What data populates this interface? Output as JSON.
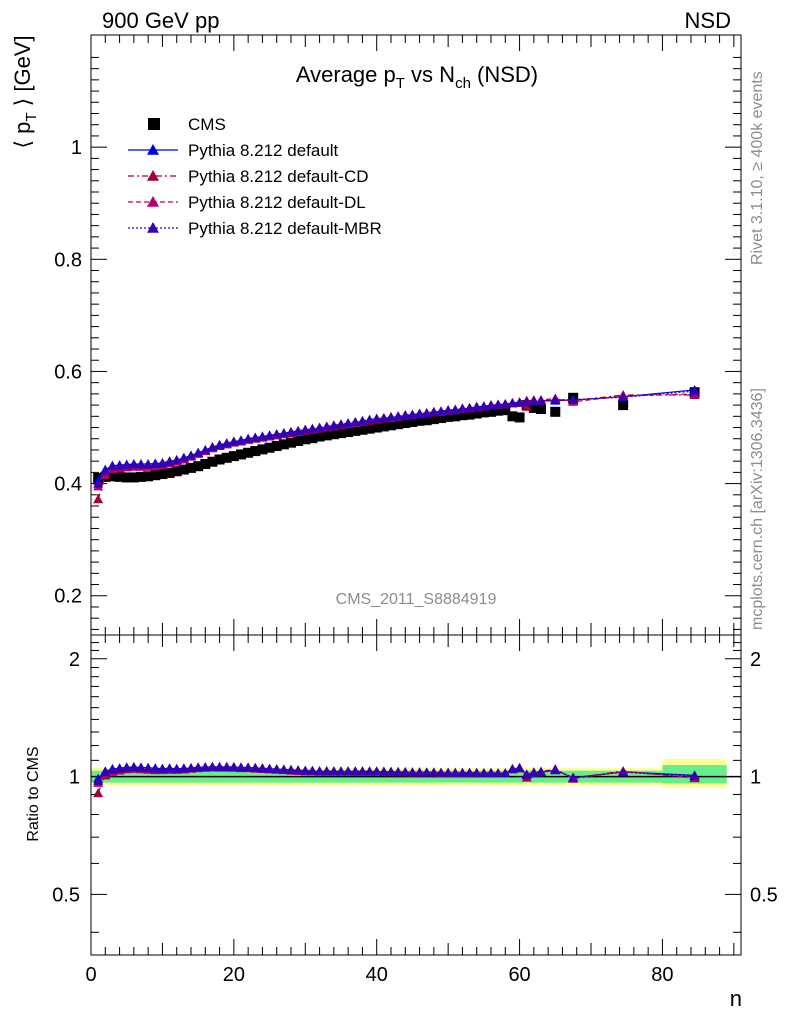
{
  "header": {
    "left": "900 GeV pp",
    "right": "NSD"
  },
  "side_labels": {
    "rivet": "Rivet 3.1.10, ≥ 400k events",
    "mcplots": "mcplots.cern.ch [arXiv:1306.3436]"
  },
  "analysis_id": "CMS_2011_S8884919",
  "colors": {
    "cms": "#000000",
    "default": "#0000ee",
    "cd": "#a50034",
    "dl": "#b5006e",
    "mbr": "#3200b5",
    "band_outer": "#ffff99",
    "band_inner": "#66ee88"
  },
  "chart_data": [
    {
      "type": "scatter",
      "title": "Average p_T vs N_ch (NSD)",
      "ylabel": "⟨ p_T ⟩ [GeV]",
      "xlabel": "",
      "xlim": [
        0,
        91
      ],
      "ylim": [
        0.13,
        1.2
      ],
      "xticks": [
        "0",
        "20",
        "40",
        "60",
        "80"
      ],
      "yticks": [
        "0.2",
        "0.4",
        "0.6",
        "0.8",
        "1"
      ],
      "legend_position": "top-left",
      "x": [
        1,
        2,
        3,
        4,
        5,
        6,
        7,
        8,
        9,
        10,
        11,
        12,
        13,
        14,
        15,
        16,
        17,
        18,
        19,
        20,
        21,
        22,
        23,
        24,
        25,
        26,
        27,
        28,
        29,
        30,
        31,
        32,
        33,
        34,
        35,
        36,
        37,
        38,
        39,
        40,
        41,
        42,
        43,
        44,
        45,
        46,
        47,
        48,
        49,
        50,
        51,
        52,
        53,
        54,
        55,
        56,
        57,
        58,
        59,
        60,
        61,
        62,
        63,
        65,
        67.5,
        74.5,
        84.5
      ],
      "series": [
        {
          "name": "CMS",
          "marker": "square",
          "values": [
            0.41,
            0.412,
            0.413,
            0.412,
            0.411,
            0.411,
            0.412,
            0.413,
            0.415,
            0.417,
            0.419,
            0.422,
            0.425,
            0.428,
            0.431,
            0.435,
            0.439,
            0.443,
            0.446,
            0.449,
            0.452,
            0.455,
            0.458,
            0.461,
            0.464,
            0.467,
            0.47,
            0.473,
            0.476,
            0.479,
            0.481,
            0.484,
            0.486,
            0.488,
            0.49,
            0.492,
            0.494,
            0.496,
            0.498,
            0.5,
            0.502,
            0.504,
            0.506,
            0.508,
            0.51,
            0.512,
            0.513,
            0.515,
            0.517,
            0.519,
            0.52,
            0.522,
            0.523,
            0.525,
            0.527,
            0.528,
            0.53,
            0.531,
            0.52,
            0.518,
            0.54,
            0.535,
            0.533,
            0.528,
            0.553,
            0.54,
            0.563
          ]
        },
        {
          "name": "Pythia 8.212 default",
          "marker": "triangle",
          "values": [
            0.405,
            0.425,
            0.432,
            0.433,
            0.434,
            0.435,
            0.435,
            0.435,
            0.436,
            0.437,
            0.44,
            0.442,
            0.446,
            0.45,
            0.455,
            0.46,
            0.465,
            0.469,
            0.472,
            0.475,
            0.477,
            0.48,
            0.482,
            0.484,
            0.486,
            0.488,
            0.49,
            0.492,
            0.494,
            0.496,
            0.497,
            0.499,
            0.501,
            0.503,
            0.505,
            0.507,
            0.509,
            0.511,
            0.513,
            0.515,
            0.516,
            0.518,
            0.519,
            0.521,
            0.522,
            0.524,
            0.525,
            0.527,
            0.528,
            0.53,
            0.531,
            0.533,
            0.534,
            0.536,
            0.537,
            0.539,
            0.54,
            0.541,
            0.543,
            0.544,
            0.545,
            0.546,
            0.547,
            0.548,
            0.549,
            0.555,
            0.567
          ]
        },
        {
          "name": "Pythia 8.212 default-CD",
          "marker": "triangle",
          "values": [
            0.372,
            0.415,
            0.425,
            0.427,
            0.429,
            0.43,
            0.43,
            0.43,
            0.431,
            0.433,
            0.436,
            0.439,
            0.443,
            0.448,
            0.453,
            0.458,
            0.463,
            0.467,
            0.47,
            0.473,
            0.475,
            0.478,
            0.48,
            0.482,
            0.484,
            0.486,
            0.488,
            0.49,
            0.492,
            0.494,
            0.496,
            0.498,
            0.5,
            0.502,
            0.504,
            0.506,
            0.508,
            0.51,
            0.512,
            0.514,
            0.516,
            0.517,
            0.519,
            0.521,
            0.522,
            0.524,
            0.525,
            0.527,
            0.528,
            0.53,
            0.531,
            0.533,
            0.534,
            0.536,
            0.537,
            0.539,
            0.54,
            0.541,
            0.543,
            0.544,
            0.537,
            0.547,
            0.547,
            0.55,
            0.548,
            0.558,
            0.558
          ]
        },
        {
          "name": "Pythia 8.212 default-DL",
          "marker": "triangle",
          "values": [
            0.395,
            0.418,
            0.427,
            0.429,
            0.43,
            0.431,
            0.431,
            0.431,
            0.432,
            0.434,
            0.437,
            0.44,
            0.444,
            0.449,
            0.454,
            0.459,
            0.464,
            0.468,
            0.471,
            0.474,
            0.476,
            0.479,
            0.481,
            0.483,
            0.485,
            0.487,
            0.489,
            0.491,
            0.493,
            0.495,
            0.497,
            0.499,
            0.501,
            0.503,
            0.505,
            0.507,
            0.509,
            0.511,
            0.513,
            0.515,
            0.517,
            0.518,
            0.52,
            0.522,
            0.523,
            0.525,
            0.526,
            0.528,
            0.529,
            0.531,
            0.532,
            0.534,
            0.535,
            0.537,
            0.538,
            0.54,
            0.541,
            0.542,
            0.544,
            0.545,
            0.548,
            0.549,
            0.549,
            0.552,
            0.546,
            0.556,
            0.56
          ]
        },
        {
          "name": "Pythia 8.212 default-MBR",
          "marker": "triangle",
          "values": [
            0.4,
            0.423,
            0.431,
            0.432,
            0.433,
            0.434,
            0.434,
            0.434,
            0.435,
            0.436,
            0.439,
            0.442,
            0.446,
            0.45,
            0.455,
            0.46,
            0.465,
            0.469,
            0.472,
            0.475,
            0.477,
            0.48,
            0.482,
            0.484,
            0.486,
            0.488,
            0.49,
            0.492,
            0.494,
            0.496,
            0.498,
            0.5,
            0.502,
            0.504,
            0.506,
            0.508,
            0.51,
            0.512,
            0.514,
            0.516,
            0.517,
            0.519,
            0.52,
            0.522,
            0.523,
            0.525,
            0.526,
            0.528,
            0.529,
            0.531,
            0.532,
            0.534,
            0.535,
            0.537,
            0.538,
            0.54,
            0.541,
            0.542,
            0.544,
            0.545,
            0.546,
            0.547,
            0.548,
            0.549,
            0.55,
            0.554,
            0.565
          ]
        }
      ]
    },
    {
      "type": "scatter",
      "title": "",
      "ylabel": "Ratio to CMS",
      "xlabel": "n",
      "xlim": [
        0,
        91
      ],
      "ylim": [
        0.35,
        2.3
      ],
      "log_y": true,
      "yticks": [
        "0.5",
        "1",
        "2"
      ],
      "xticks": [
        "0",
        "20",
        "40",
        "60",
        "80"
      ],
      "reference": 1.0,
      "uncertainty_band": {
        "segments": [
          {
            "x": [
              0,
              80
            ],
            "inner": [
              0.965,
              1.035
            ],
            "outer": [
              0.95,
              1.05
            ]
          },
          {
            "x": [
              80,
              89
            ],
            "inner": [
              0.96,
              1.07
            ],
            "outer": [
              0.935,
              1.11
            ]
          }
        ]
      }
    }
  ]
}
